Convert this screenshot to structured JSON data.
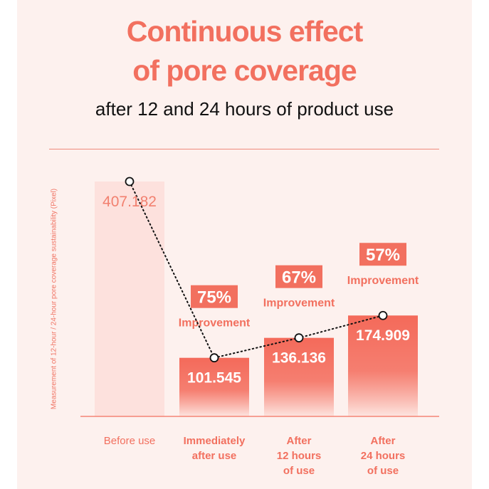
{
  "title_line1": "Continuous effect",
  "title_line2": "of pore coverage",
  "subtitle": "after 12 and 24 hours of product use",
  "colors": {
    "accent": "#f2705f",
    "bar_light": "#fde1dd",
    "bar_gradient_top": "#f46a5a",
    "bar_gradient_bottom": "#fde5e0",
    "badge": "#f2705f",
    "background": "#fdf1ee"
  },
  "chart_data": {
    "type": "bar",
    "ylabel": "Measurement of 12-hour / 24-hour pore coverage sustainability (Pixel)",
    "xlabel": "",
    "categories": [
      [
        "Before use"
      ],
      [
        "Immediately",
        "after use"
      ],
      [
        "After",
        "12 hours",
        "of use"
      ],
      [
        "After",
        "24 hours",
        "of use"
      ]
    ],
    "values": [
      407.182,
      101.545,
      136.136,
      174.909
    ],
    "value_labels": [
      "407.182",
      "101.545",
      "136.136",
      "174.909"
    ],
    "improvements": [
      null,
      "75%",
      "67%",
      "57%"
    ],
    "improvement_label": "Improvement",
    "ylim": [
      0,
      407.182
    ],
    "line_overlay": true,
    "grid": false
  }
}
